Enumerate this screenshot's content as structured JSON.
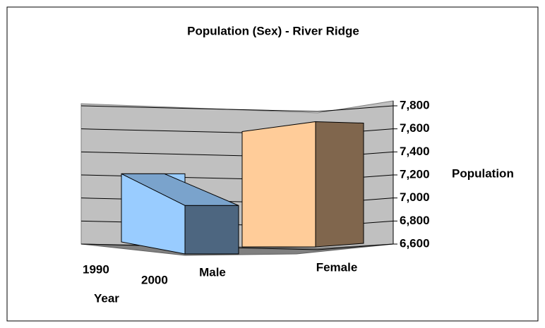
{
  "chart_data": {
    "type": "bar3d",
    "title": "Population (Sex) - River Ridge",
    "categories": [
      "Male",
      "Female"
    ],
    "series": [
      {
        "name": "1990",
        "values": [
          null,
          null
        ]
      },
      {
        "name": "2000",
        "values": [
          7210,
          7650
        ],
        "colors": [
          "#99ccff",
          "#ffcc99"
        ]
      }
    ],
    "x_label": "Year",
    "y_label": "Population",
    "ylim": [
      6600,
      7800
    ],
    "yticks": [
      {
        "value": 6600,
        "label": "6,600"
      },
      {
        "value": 6800,
        "label": "6,800"
      },
      {
        "value": 7000,
        "label": "7,000"
      },
      {
        "value": 7200,
        "label": "7,200"
      },
      {
        "value": 7400,
        "label": "7,400"
      },
      {
        "value": 7600,
        "label": "7,600"
      },
      {
        "value": 7800,
        "label": "7,800"
      }
    ],
    "grid": true
  }
}
